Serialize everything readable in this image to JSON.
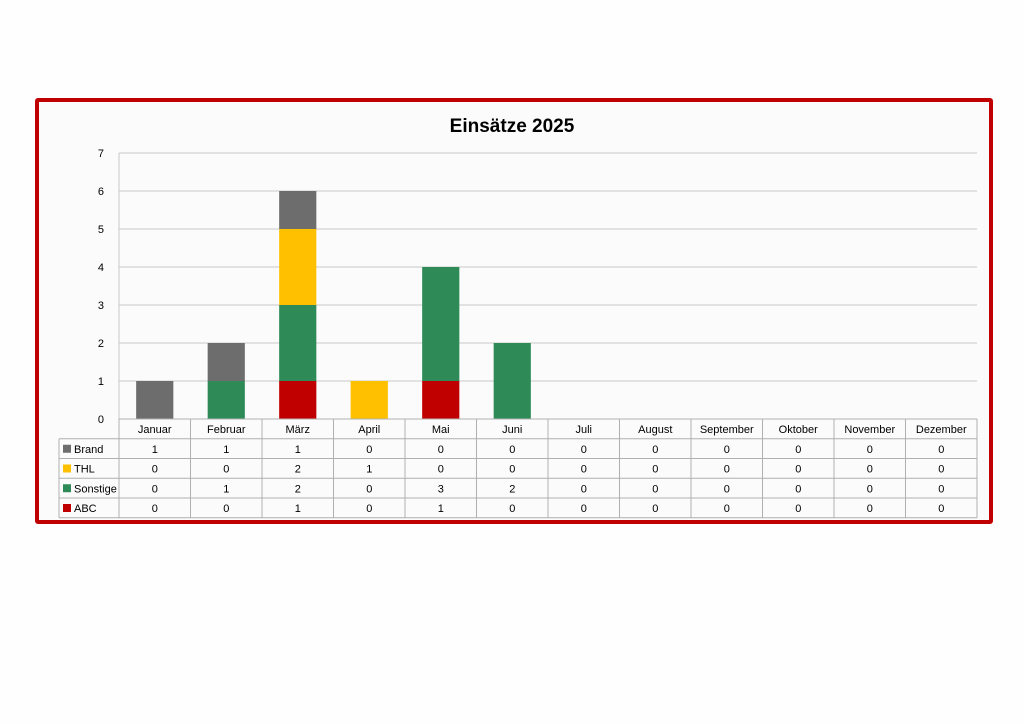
{
  "chart_data": {
    "type": "bar",
    "stacked": true,
    "title": "Einsätze 2025",
    "categories": [
      "Januar",
      "Februar",
      "März",
      "April",
      "Mai",
      "Juni",
      "Juli",
      "August",
      "September",
      "Oktober",
      "November",
      "Dezember"
    ],
    "series": [
      {
        "name": "ABC",
        "color": "#c00000",
        "values": [
          0,
          0,
          1,
          0,
          1,
          0,
          0,
          0,
          0,
          0,
          0,
          0
        ]
      },
      {
        "name": "Sonstige",
        "color": "#2e8b57",
        "values": [
          0,
          1,
          2,
          0,
          3,
          2,
          0,
          0,
          0,
          0,
          0,
          0
        ]
      },
      {
        "name": "THL",
        "color": "#ffc000",
        "values": [
          0,
          0,
          2,
          1,
          0,
          0,
          0,
          0,
          0,
          0,
          0,
          0
        ]
      },
      {
        "name": "Brand",
        "color": "#6d6d6d",
        "values": [
          1,
          1,
          1,
          0,
          0,
          0,
          0,
          0,
          0,
          0,
          0,
          0
        ]
      }
    ],
    "table_order": [
      "Brand",
      "THL",
      "Sonstige",
      "ABC"
    ],
    "ylim": [
      0,
      7
    ],
    "yticks": [
      0,
      1,
      2,
      3,
      4,
      5,
      6,
      7
    ],
    "grid": true,
    "legend": "data-table"
  },
  "colors": {
    "frame": "#c00000",
    "grid": "#c8c8c8"
  }
}
